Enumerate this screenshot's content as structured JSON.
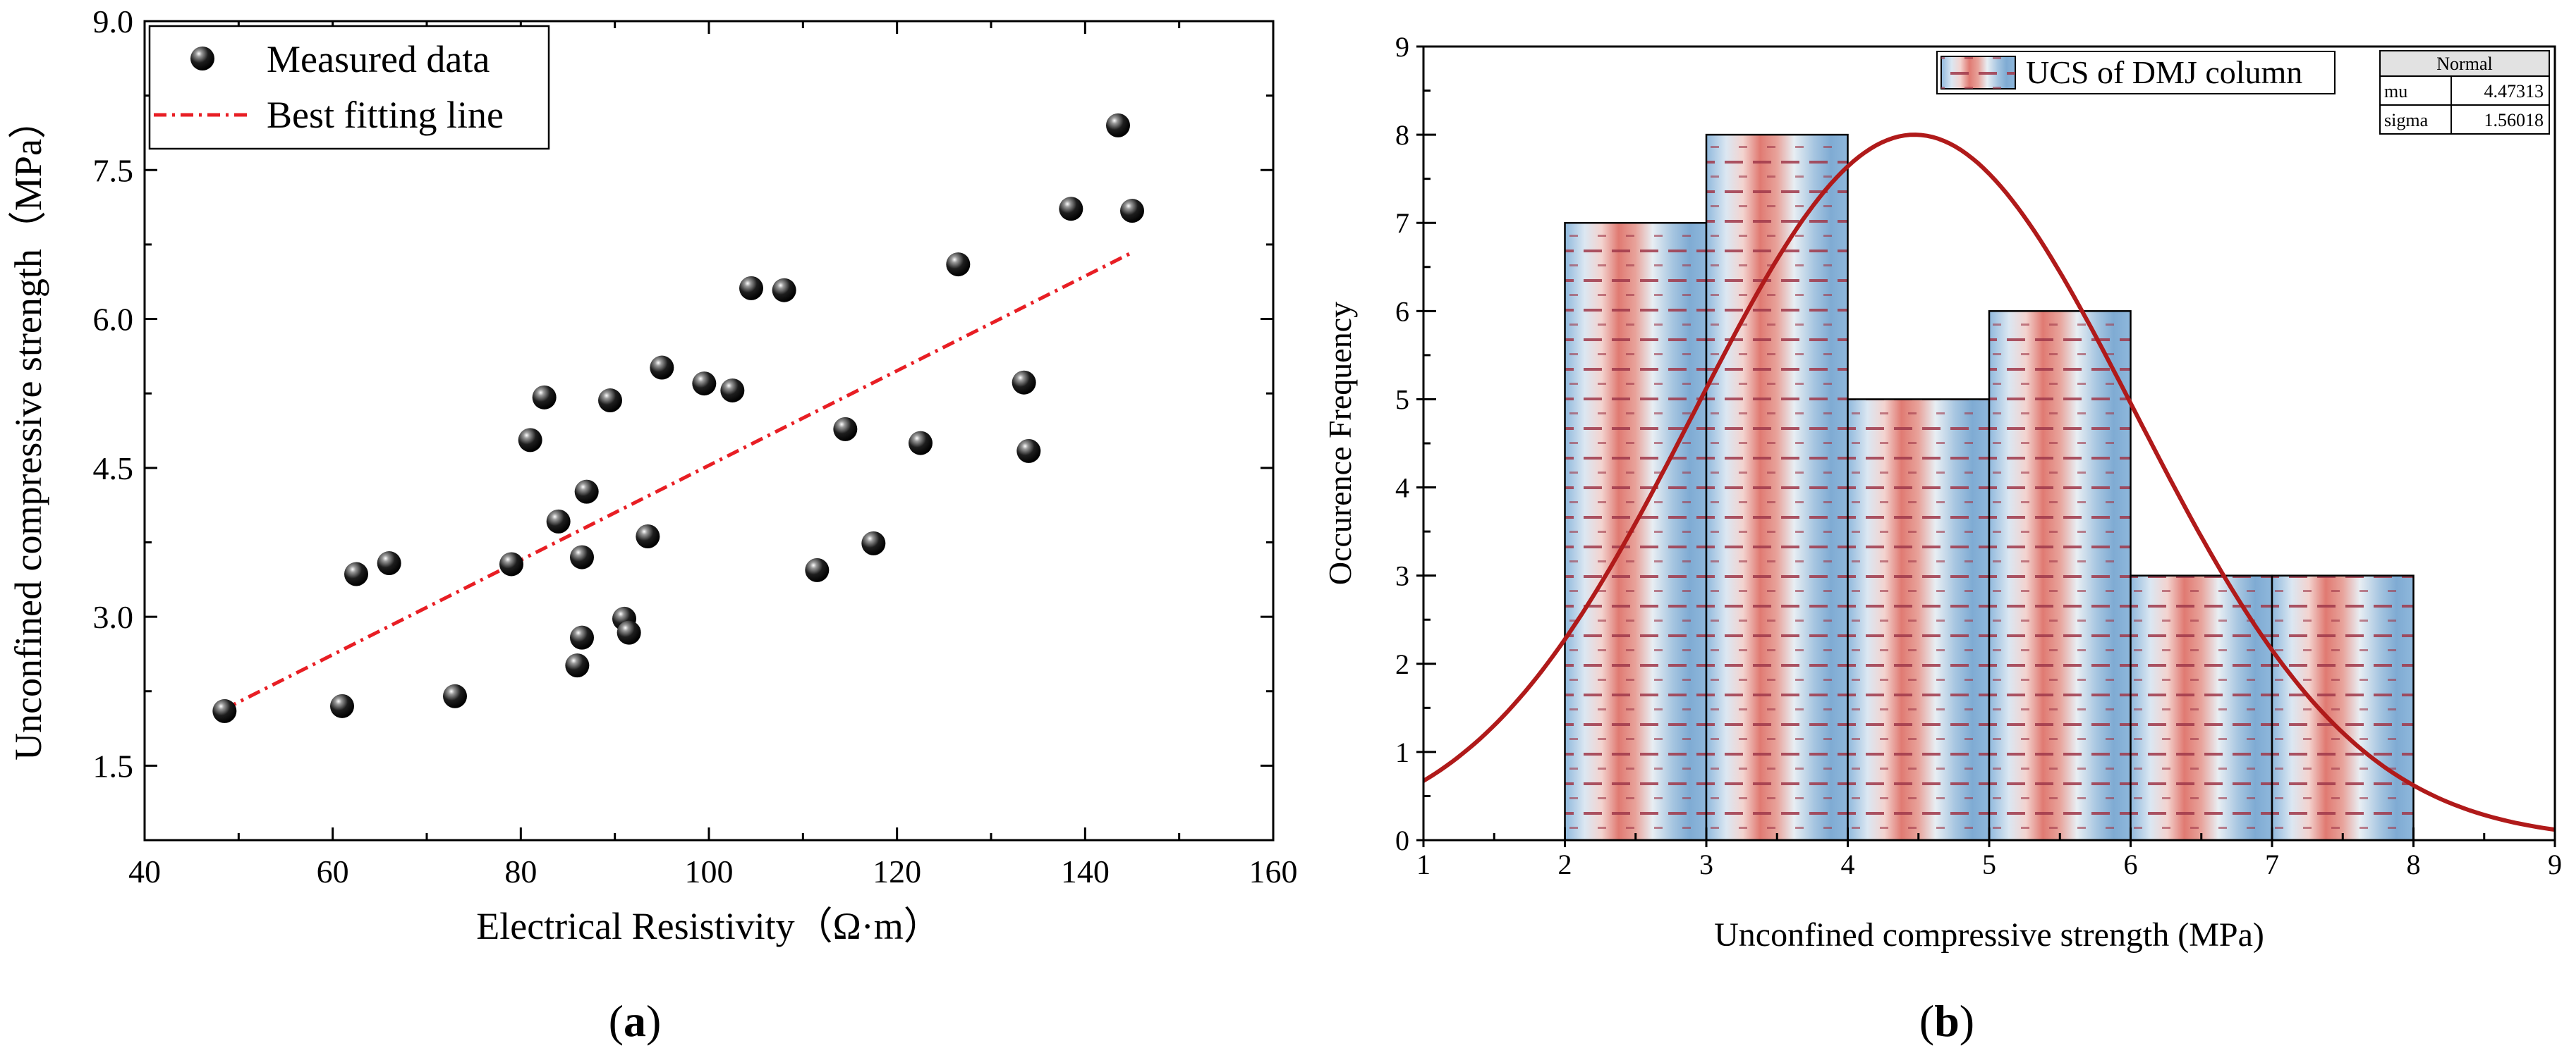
{
  "figure_labels": {
    "a": "a",
    "b": "b"
  },
  "chart_data": [
    {
      "type": "scatter",
      "panel": "a",
      "xlabel": "Electrical Resistivity（Ω·m）",
      "ylabel": "Unconfined compressive strength（MPa）",
      "xlim": [
        40,
        160
      ],
      "ylim": [
        0.75,
        9.0
      ],
      "xticks": [
        40,
        60,
        80,
        100,
        120,
        140,
        160
      ],
      "xtick_labels": [
        "40",
        "60",
        "80",
        "100",
        "120",
        "140",
        "160"
      ],
      "yticks": [
        1.5,
        3.0,
        4.5,
        6.0,
        7.5,
        9.0
      ],
      "ytick_labels": [
        "1.5",
        "3.0",
        "4.5",
        "6.0",
        "7.5",
        "9.0"
      ],
      "legend": {
        "position": "top-left",
        "entries": [
          "Measured data",
          "Best fitting line"
        ]
      },
      "series": [
        {
          "name": "Measured data",
          "kind": "scatter",
          "points": [
            [
              48.5,
              2.05
            ],
            [
              61,
              2.1
            ],
            [
              62.5,
              3.43
            ],
            [
              66,
              3.54
            ],
            [
              73,
              2.2
            ],
            [
              79,
              3.53
            ],
            [
              81,
              4.78
            ],
            [
              82.5,
              5.21
            ],
            [
              84,
              3.96
            ],
            [
              86,
              2.51
            ],
            [
              86.5,
              2.79
            ],
            [
              86.5,
              3.6
            ],
            [
              87,
              4.26
            ],
            [
              89.5,
              5.18
            ],
            [
              91,
              2.98
            ],
            [
              91.5,
              2.84
            ],
            [
              93.5,
              3.81
            ],
            [
              95,
              5.51
            ],
            [
              99.5,
              5.35
            ],
            [
              102.5,
              5.28
            ],
            [
              104.5,
              6.31
            ],
            [
              108,
              6.29
            ],
            [
              111.5,
              3.47
            ],
            [
              114.5,
              4.89
            ],
            [
              117.5,
              3.74
            ],
            [
              122.5,
              4.75
            ],
            [
              126.5,
              6.55
            ],
            [
              133.5,
              5.36
            ],
            [
              134,
              4.67
            ],
            [
              138.5,
              7.11
            ],
            [
              143.5,
              7.95
            ],
            [
              145,
              7.09
            ]
          ]
        },
        {
          "name": "Best fitting line",
          "kind": "line",
          "points": [
            [
              48.5,
              2.07
            ],
            [
              145,
              6.67
            ]
          ]
        }
      ]
    },
    {
      "type": "bar",
      "panel": "b",
      "xlabel": "Unconfined compressive strength (MPa)",
      "ylabel": "Occurence Frequency",
      "xlim": [
        1,
        9
      ],
      "ylim": [
        0,
        9
      ],
      "xticks": [
        1,
        2,
        3,
        4,
        5,
        6,
        7,
        8,
        9
      ],
      "xtick_labels": [
        "1",
        "2",
        "3",
        "4",
        "5",
        "6",
        "7",
        "8",
        "9"
      ],
      "yticks": [
        0,
        1,
        2,
        3,
        4,
        5,
        6,
        7,
        8,
        9
      ],
      "ytick_labels": [
        "0",
        "1",
        "2",
        "3",
        "4",
        "5",
        "6",
        "7",
        "8",
        "9"
      ],
      "bins": [
        [
          2,
          3
        ],
        [
          3,
          4
        ],
        [
          4,
          5
        ],
        [
          5,
          6
        ],
        [
          6,
          7
        ],
        [
          7,
          8
        ]
      ],
      "values": [
        7,
        8,
        5,
        6,
        3,
        3
      ],
      "legend": {
        "position": "top-right",
        "entries": [
          "UCS of DMJ column"
        ]
      },
      "fit": {
        "name": "Normal",
        "mu": 4.47313,
        "sigma": 1.56018,
        "peak": 8.0
      },
      "stats_table": {
        "title": "Normal",
        "rows": [
          [
            "mu",
            "4.47313"
          ],
          [
            "sigma",
            "1.56018"
          ]
        ]
      }
    }
  ]
}
